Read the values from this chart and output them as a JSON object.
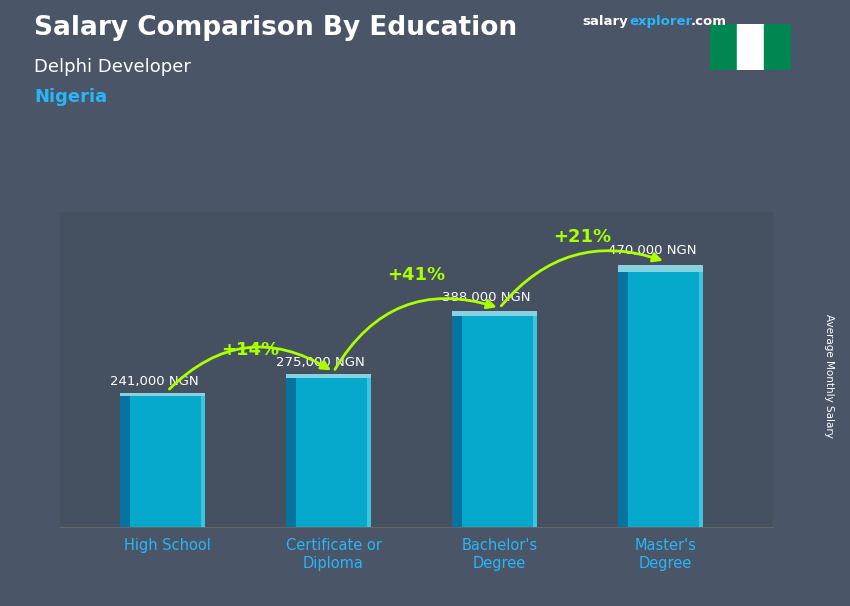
{
  "title_main": "Salary Comparison By Education",
  "subtitle1": "Delphi Developer",
  "subtitle2": "Nigeria",
  "categories": [
    "High School",
    "Certificate or\nDiploma",
    "Bachelor's\nDegree",
    "Master's\nDegree"
  ],
  "values": [
    241000,
    275000,
    388000,
    470000
  ],
  "value_labels": [
    "241,000 NGN",
    "275,000 NGN",
    "388,000 NGN",
    "470,000 NGN"
  ],
  "pct_labels": [
    "+14%",
    "+41%",
    "+21%"
  ],
  "bar_color_main": "#00b4d8",
  "bar_color_dark": "#0077a8",
  "bar_color_light": "#48cae4",
  "bar_color_top": "#90e0ef",
  "bg_color": "#4a5568",
  "title_color": "#ffffff",
  "subtitle1_color": "#ffffff",
  "subtitle2_color": "#29b6f6",
  "value_label_color": "#ffffff",
  "pct_color": "#aaff00",
  "xlabel_color": "#29b6f6",
  "ylabel_text": "Average Monthly Salary",
  "watermark_salary": "salary",
  "watermark_explorer": "explorer",
  "watermark_com": ".com",
  "ylim": [
    0,
    580000
  ],
  "bar_width": 0.45,
  "flag_green": "#008751",
  "flag_white": "#ffffff"
}
